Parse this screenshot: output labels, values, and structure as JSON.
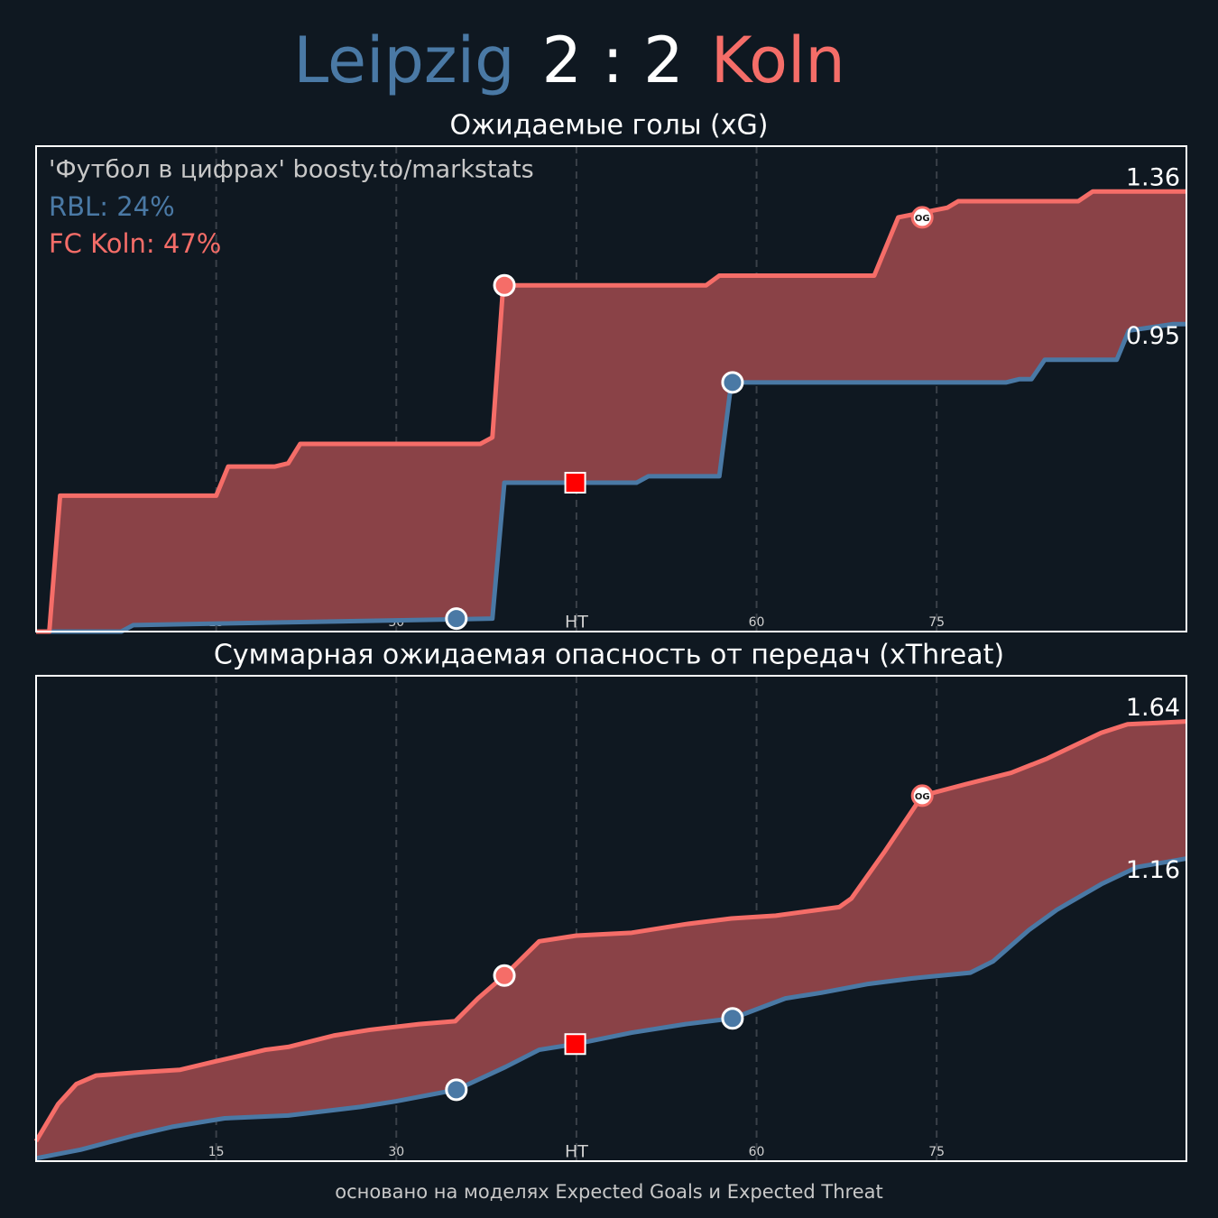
{
  "header": {
    "home": "Leipzig",
    "score": "2 : 2",
    "away": "Koln",
    "home_color": "#4a79a5",
    "score_color": "#ffffff",
    "away_color": "#f56d68"
  },
  "footer": "основано на моделях Expected Goals и Expected Threat",
  "chart_data": [
    {
      "type": "line",
      "title": "Ожидаемые голы (xG)",
      "annotation": "'Футбол в цифрах' boosty.to/markstats",
      "xlim": [
        0,
        95.8
      ],
      "xticks": [
        15,
        30,
        {
          "value": 45,
          "label": "HT"
        },
        60,
        75
      ],
      "ylim": [
        0,
        1.5
      ],
      "grid": true,
      "fill_color": "#8a4247",
      "series": [
        {
          "name": "RBL: 24%",
          "color": "#4a79a5",
          "x": [
            0,
            7.1,
            8.1,
            38,
            39,
            50,
            51,
            56.9,
            57.9,
            80.8,
            81.9,
            82.9,
            84,
            90,
            91,
            94.7,
            95.8
          ],
          "values": [
            0,
            0,
            0.02,
            0.04,
            0.46,
            0.46,
            0.48,
            0.48,
            0.77,
            0.77,
            0.78,
            0.78,
            0.84,
            0.84,
            0.93,
            0.95,
            0.95
          ]
        },
        {
          "name": "FC Koln: 47%",
          "color": "#f56d68",
          "x": [
            0,
            1.1,
            2.0,
            15,
            16,
            19.9,
            21,
            22,
            37,
            38,
            38.9,
            55.8,
            56.9,
            69.8,
            71.8,
            75.9,
            76.8,
            86.8,
            88,
            95.8
          ],
          "values": [
            0,
            0,
            0.42,
            0.42,
            0.51,
            0.51,
            0.52,
            0.58,
            0.58,
            0.6,
            1.07,
            1.07,
            1.1,
            1.1,
            1.28,
            1.31,
            1.33,
            1.33,
            1.36,
            1.36
          ]
        }
      ],
      "markers": [
        {
          "x": 35,
          "y": 0.04,
          "color": "#4a79a5",
          "shape": "circle"
        },
        {
          "x": 39,
          "y": 1.07,
          "color": "#f56d68",
          "shape": "circle"
        },
        {
          "x": 44.9,
          "y": 0.46,
          "color": "#ff0000",
          "shape": "square"
        },
        {
          "x": 58,
          "y": 0.77,
          "color": "#4a79a5",
          "shape": "circle"
        },
        {
          "x": 73.8,
          "y": 1.28,
          "color": "#f56d68",
          "shape": "circle",
          "label": "OG"
        }
      ]
    },
    {
      "type": "line",
      "title": "Суммарная ожидаемая опасность от передач (xThreat)",
      "xlim": [
        0,
        95.8
      ],
      "xticks": [
        15,
        30,
        {
          "value": 45,
          "label": "HT"
        },
        60,
        75
      ],
      "ylim": [
        0.1,
        1.8
      ],
      "grid": true,
      "fill_color": "#8a4247",
      "series": [
        {
          "color": "#4a79a5",
          "x": [
            0,
            3.7,
            8.2,
            11.3,
            15.7,
            21,
            27,
            30,
            35,
            39.1,
            41.9,
            44.9,
            49.6,
            54.1,
            58,
            62.4,
            65.4,
            69.2,
            72.9,
            77.8,
            79.7,
            82.7,
            85,
            88.7,
            91.7,
            95.8
          ],
          "values": [
            0.11,
            0.14,
            0.19,
            0.22,
            0.25,
            0.26,
            0.29,
            0.31,
            0.35,
            0.43,
            0.49,
            0.51,
            0.55,
            0.58,
            0.6,
            0.67,
            0.69,
            0.72,
            0.74,
            0.76,
            0.8,
            0.91,
            0.98,
            1.07,
            1.13,
            1.16
          ]
        },
        {
          "color": "#f56d68",
          "x": [
            0,
            1.84,
            3.35,
            5,
            8.2,
            12,
            15,
            19.1,
            21,
            24.8,
            27.8,
            31.9,
            34.9,
            36.8,
            39,
            41.9,
            45,
            49.6,
            54.1,
            57.9,
            61.6,
            66.9,
            67.9,
            70.6,
            73.8,
            77.4,
            81.2,
            84.2,
            85.7,
            88.7,
            90.9,
            95.8
          ],
          "values": [
            0.17,
            0.3,
            0.37,
            0.4,
            0.41,
            0.42,
            0.45,
            0.49,
            0.5,
            0.54,
            0.56,
            0.58,
            0.59,
            0.67,
            0.75,
            0.87,
            0.89,
            0.9,
            0.93,
            0.95,
            0.96,
            0.99,
            1.02,
            1.18,
            1.38,
            1.42,
            1.46,
            1.51,
            1.54,
            1.6,
            1.63,
            1.64
          ]
        }
      ],
      "markers": [
        {
          "x": 35,
          "y": 0.35,
          "color": "#4a79a5",
          "shape": "circle"
        },
        {
          "x": 39,
          "y": 0.75,
          "color": "#f56d68",
          "shape": "circle"
        },
        {
          "x": 44.9,
          "y": 0.51,
          "color": "#ff0000",
          "shape": "square"
        },
        {
          "x": 58,
          "y": 0.6,
          "color": "#4a79a5",
          "shape": "circle"
        },
        {
          "x": 73.8,
          "y": 1.38,
          "color": "#f56d68",
          "shape": "circle",
          "label": "OG"
        }
      ]
    }
  ]
}
